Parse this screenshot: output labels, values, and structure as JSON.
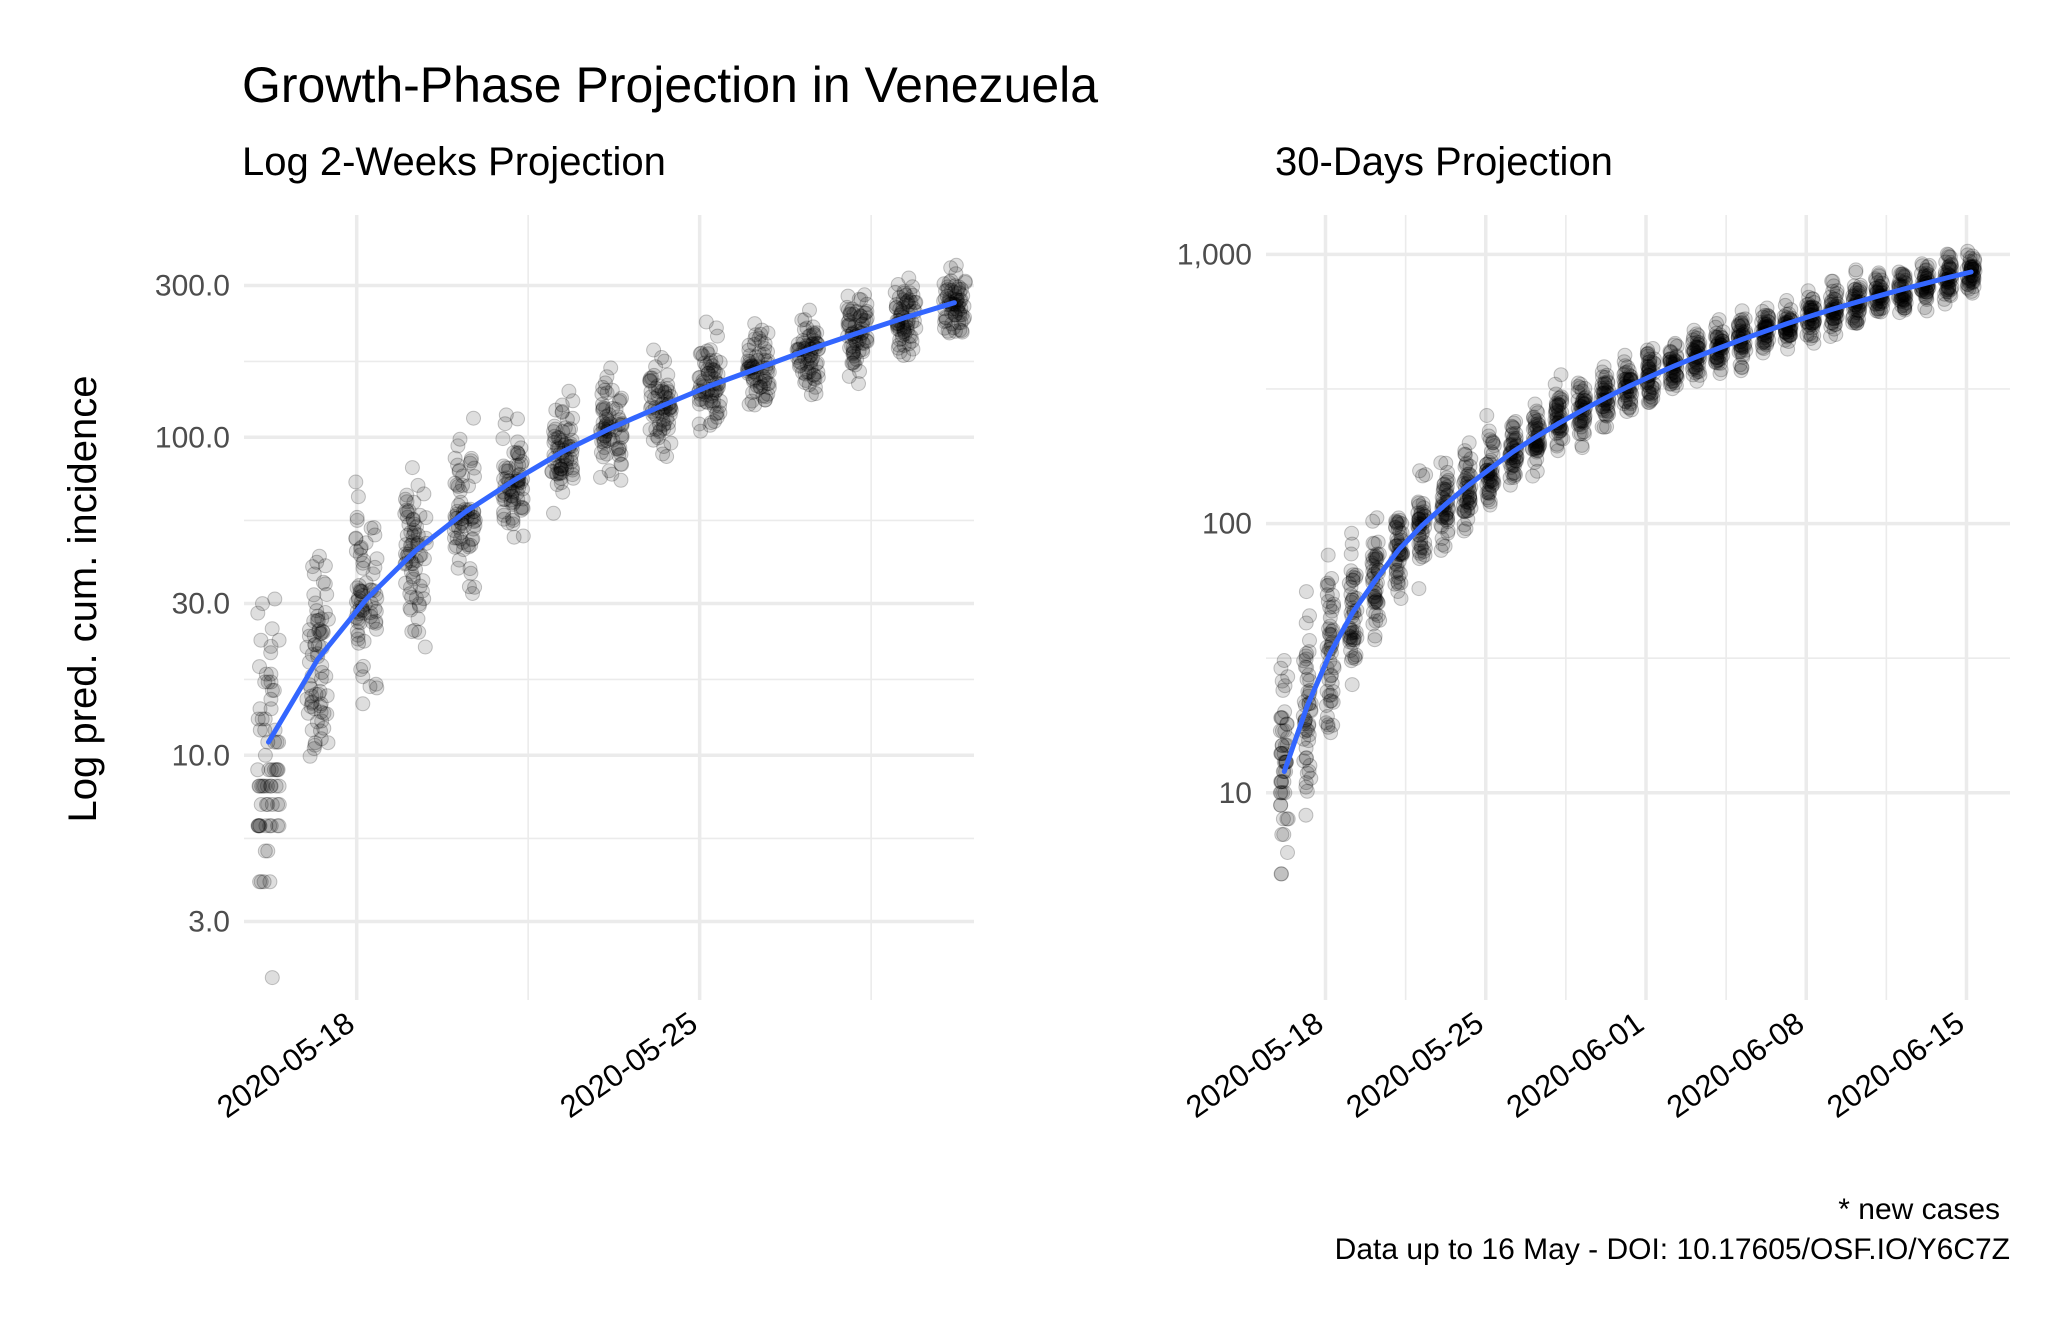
{
  "title": "Growth-Phase Projection in Venezuela",
  "caption": {
    "line1": "* new cases",
    "line2": "Data up to 16 May - DOI: 10.17605/OSF.IO/Y6C7Z"
  },
  "colors": {
    "fit_line": "#3366ff",
    "points": "#000000",
    "grid": "#ebebeb"
  },
  "chart_data": [
    {
      "type": "scatter",
      "subtitle": "Log 2-Weeks Projection",
      "ylabel": "Log pred. cum. incidence",
      "xlabel": "",
      "y_scale": "log10",
      "ylim": [
        1.7,
        500
      ],
      "y_ticks": [
        3,
        10,
        30,
        100,
        300
      ],
      "y_tick_labels": [
        "3.0",
        "10.0",
        "30.0",
        "100.0",
        "300.0"
      ],
      "x_start": "2020-05-16",
      "xlim": [
        -0.3,
        14.6
      ],
      "x_ticks": [
        2,
        9
      ],
      "x_tick_labels": [
        "2020-05-18",
        "2020-05-25"
      ],
      "fit_line": {
        "x": [
          0.2,
          1.2,
          2.2,
          3.2,
          4.2,
          5.2,
          6.2,
          7.2,
          8.2,
          9.2,
          10.2,
          11.2,
          12.2,
          13.2,
          14.2
        ],
        "y": [
          11,
          20,
          31,
          44,
          58,
          73,
          90,
          107,
          125,
          145,
          165,
          188,
          212,
          238,
          265
        ]
      },
      "point_spread": [
        0.55,
        0.42,
        0.35,
        0.3,
        0.26,
        0.22,
        0.2,
        0.18,
        0.17,
        0.16,
        0.15,
        0.14,
        0.14,
        0.13,
        0.13
      ]
    },
    {
      "type": "scatter",
      "subtitle": "30-Days Projection",
      "ylabel": "",
      "xlabel": "",
      "y_scale": "log10",
      "ylim": [
        1.7,
        1400
      ],
      "y_ticks": [
        10,
        100,
        1000
      ],
      "y_tick_labels": [
        "10",
        "100",
        "1,000"
      ],
      "x_start": "2020-05-16",
      "xlim": [
        -0.6,
        31.9
      ],
      "x_ticks": [
        2,
        9,
        16,
        23,
        30
      ],
      "x_tick_labels": [
        "2020-05-18",
        "2020-05-25",
        "2020-06-01",
        "2020-06-08",
        "2020-06-15"
      ],
      "fit_line": {
        "x": [
          0.2,
          1.2,
          2.2,
          3.2,
          4.2,
          5.2,
          6.2,
          7.2,
          8.2,
          9.2,
          10.2,
          11.2,
          12.2,
          13.2,
          14.2,
          15.2,
          16.2,
          17.2,
          18.2,
          19.2,
          20.2,
          21.2,
          22.2,
          23.2,
          24.2,
          25.2,
          26.2,
          27.2,
          28.2,
          29.2,
          30.2
        ],
        "y": [
          12,
          21,
          33,
          47,
          62,
          80,
          98,
          117,
          138,
          160,
          185,
          210,
          236,
          263,
          292,
          322,
          352,
          384,
          416,
          449,
          483,
          518,
          554,
          590,
          627,
          664,
          702,
          741,
          780,
          820,
          860
        ]
      },
      "point_spread": [
        0.55,
        0.42,
        0.35,
        0.3,
        0.26,
        0.22,
        0.2,
        0.18,
        0.17,
        0.16,
        0.15,
        0.14,
        0.14,
        0.13,
        0.13,
        0.12,
        0.12,
        0.12,
        0.11,
        0.11,
        0.11,
        0.11,
        0.1,
        0.1,
        0.1,
        0.1,
        0.1,
        0.1,
        0.1,
        0.1,
        0.1
      ]
    }
  ]
}
